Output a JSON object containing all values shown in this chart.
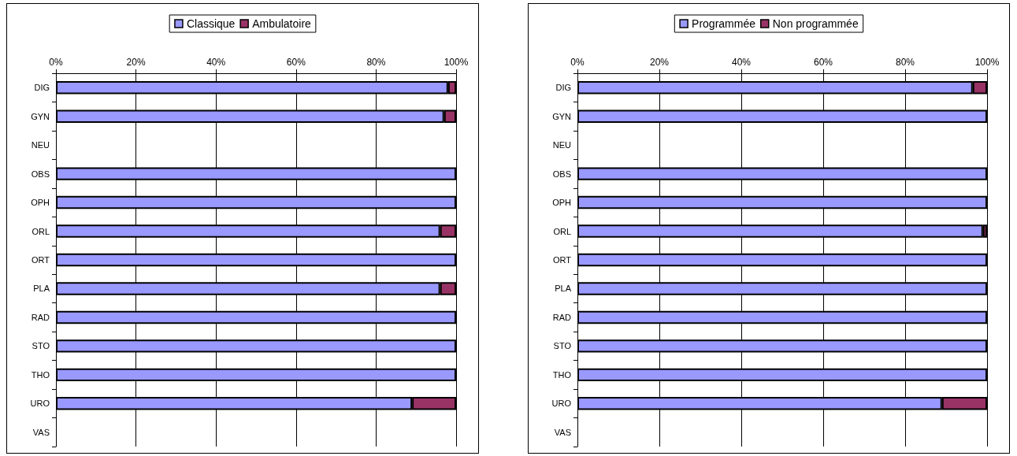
{
  "chart_data": [
    {
      "type": "bar",
      "orientation": "horizontal",
      "stacked": true,
      "grid": "x",
      "legend": "top",
      "categories": [
        "DIG",
        "GYN",
        "NEU",
        "OBS",
        "OPH",
        "ORL",
        "ORT",
        "PLA",
        "RAD",
        "STO",
        "THO",
        "URO",
        "VAS"
      ],
      "xlim": [
        0,
        100
      ],
      "xticks": [
        {
          "value": 0,
          "label": "0%"
        },
        {
          "value": 20,
          "label": "20%"
        },
        {
          "value": 40,
          "label": "40%"
        },
        {
          "value": 60,
          "label": "60%"
        },
        {
          "value": 80,
          "label": "80%"
        },
        {
          "value": 100,
          "label": "100%"
        }
      ],
      "series": [
        {
          "name": "Classique",
          "color": "#9999ff",
          "values": [
            98,
            97,
            null,
            100,
            100,
            96,
            100,
            96,
            100,
            100,
            100,
            89,
            null
          ]
        },
        {
          "name": "Ambulatoire",
          "color": "#993366",
          "values": [
            2,
            3,
            null,
            null,
            null,
            4,
            null,
            4,
            null,
            null,
            null,
            11,
            null
          ]
        }
      ]
    },
    {
      "type": "bar",
      "orientation": "horizontal",
      "stacked": true,
      "grid": "x",
      "legend": "top",
      "categories": [
        "DIG",
        "GYN",
        "NEU",
        "OBS",
        "OPH",
        "ORL",
        "ORT",
        "PLA",
        "RAD",
        "STO",
        "THO",
        "URO",
        "VAS"
      ],
      "xlim": [
        0,
        100
      ],
      "xticks": [
        {
          "value": 0,
          "label": "0%"
        },
        {
          "value": 20,
          "label": "20%"
        },
        {
          "value": 40,
          "label": "40%"
        },
        {
          "value": 60,
          "label": "60%"
        },
        {
          "value": 80,
          "label": "80%"
        },
        {
          "value": 100,
          "label": "100%"
        }
      ],
      "series": [
        {
          "name": "Programmée",
          "color": "#9999ff",
          "values": [
            96.5,
            100,
            null,
            100,
            100,
            99,
            100,
            100,
            100,
            100,
            100,
            89,
            null
          ]
        },
        {
          "name": "Non programmée",
          "color": "#993366",
          "values": [
            3.5,
            null,
            null,
            null,
            null,
            1,
            null,
            null,
            null,
            null,
            null,
            11,
            null
          ]
        }
      ]
    }
  ]
}
